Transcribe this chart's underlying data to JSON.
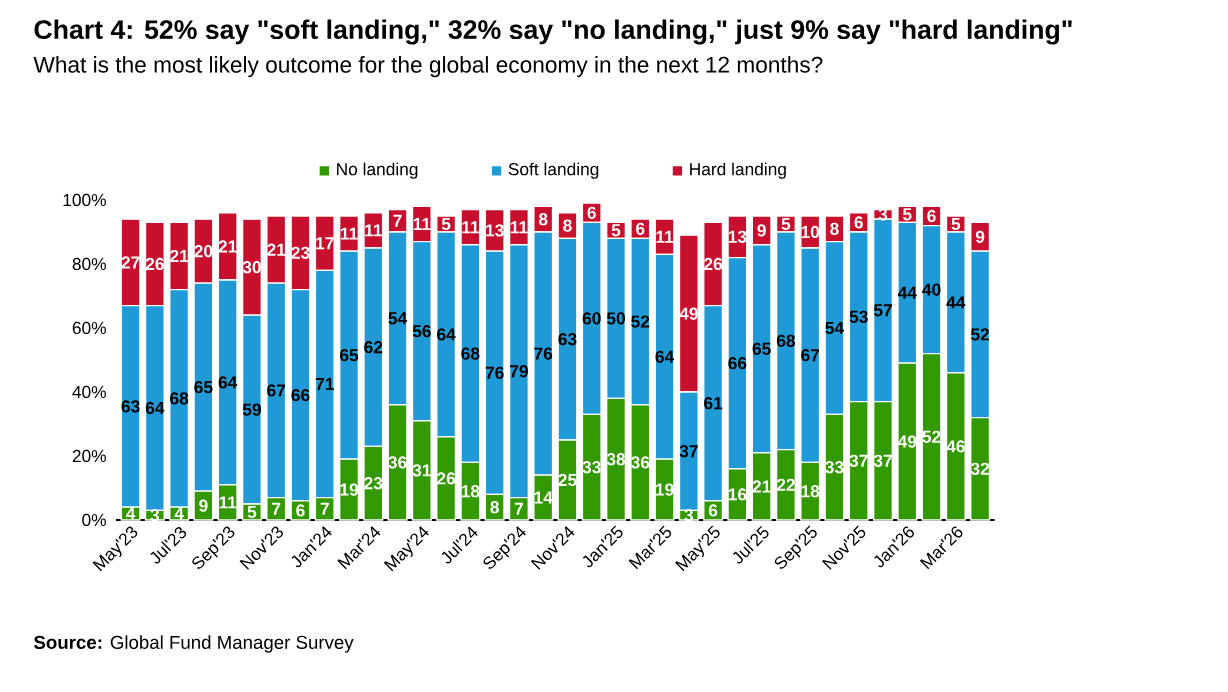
{
  "chart_data": {
    "type": "bar",
    "stacked": true,
    "title": "Chart 4: 52% say \"soft landing,\" 32% say \"no landing,\" just 9% say \"hard landing\"",
    "subtitle": "What is the most likely outcome for the global economy in the next 12 months?",
    "categories": [
      "May'23",
      null,
      "Jul'23",
      null,
      "Sep'23",
      null,
      "Nov'23",
      null,
      "Jan'24",
      null,
      "Mar'24",
      null,
      "May'24",
      null,
      "Jul'24",
      null,
      "Sep'24",
      null,
      "Nov'24",
      null,
      "Jan'25",
      null,
      "Mar'25",
      null,
      "May'25",
      null,
      "Jul'25",
      null,
      "Sep'25",
      null,
      "Nov'25",
      null,
      "Jan'26",
      null,
      "Mar'26",
      null
    ],
    "series": [
      {
        "name": "No landing",
        "color": "#339900",
        "values": [
          4,
          3,
          4,
          9,
          11,
          5,
          7,
          6,
          7,
          19,
          23,
          36,
          31,
          26,
          18,
          8,
          7,
          14,
          25,
          33,
          38,
          36,
          19,
          3,
          6,
          16,
          21,
          22,
          18,
          33,
          37,
          37,
          49,
          52,
          46,
          32
        ]
      },
      {
        "name": "Soft landing",
        "color": "#1f9ad6",
        "values": [
          63,
          64,
          68,
          65,
          64,
          59,
          67,
          66,
          71,
          65,
          62,
          54,
          56,
          64,
          68,
          76,
          79,
          76,
          63,
          60,
          50,
          52,
          64,
          37,
          61,
          66,
          65,
          68,
          67,
          54,
          53,
          57,
          44,
          40,
          44,
          52
        ]
      },
      {
        "name": "Hard landing",
        "color": "#c8102e",
        "values": [
          27,
          26,
          21,
          20,
          21,
          30,
          21,
          23,
          17,
          11,
          11,
          7,
          11,
          5,
          11,
          13,
          11,
          8,
          8,
          6,
          5,
          6,
          11,
          49,
          26,
          13,
          9,
          5,
          10,
          8,
          6,
          3,
          5,
          6,
          5,
          9
        ]
      }
    ],
    "ylim": [
      0,
      100
    ],
    "yticks": [
      {
        "value": 0,
        "label": "0%"
      },
      {
        "value": 20,
        "label": "20%"
      },
      {
        "value": 40,
        "label": "40%"
      },
      {
        "value": 60,
        "label": "60%"
      },
      {
        "value": 80,
        "label": "80%"
      },
      {
        "value": 100,
        "label": "100%"
      }
    ],
    "data_labels": true,
    "grid": false,
    "legend": "top",
    "annotations": [
      "**Source:** Global Fund Manager Survey"
    ]
  }
}
